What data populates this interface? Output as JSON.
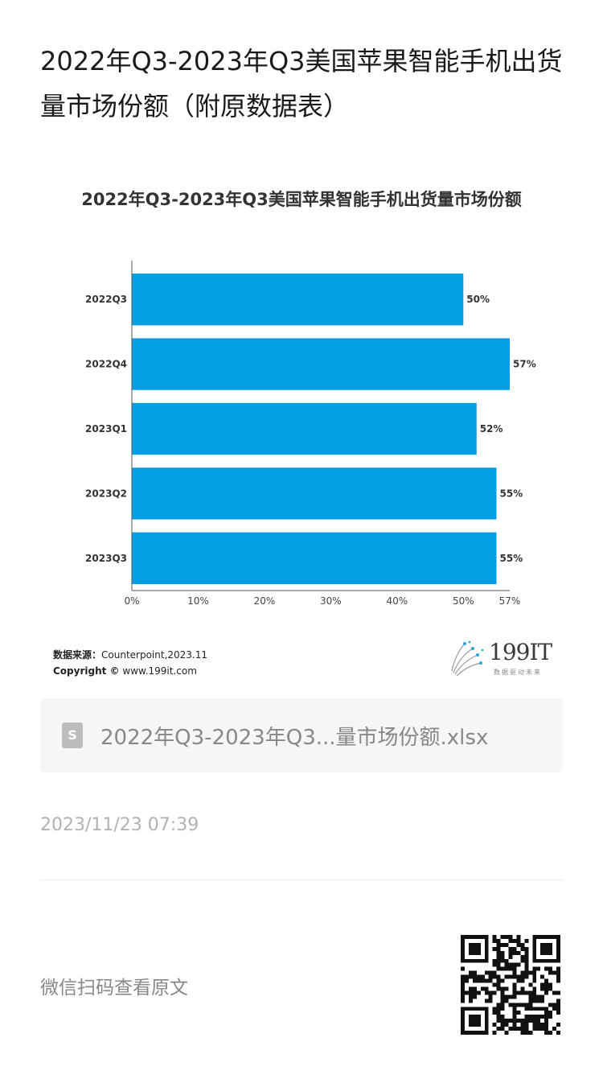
{
  "article": {
    "title": "2022年Q3-2023年Q3美国苹果智能手机出货量市场份额（附原数据表）"
  },
  "chart_data": {
    "type": "bar",
    "orientation": "horizontal",
    "title": "2022年Q3-2023年Q3美国苹果智能手机出货量市场份额",
    "categories": [
      "2022Q3",
      "2022Q4",
      "2023Q1",
      "2023Q2",
      "2023Q3"
    ],
    "values": [
      50,
      57,
      52,
      55,
      55
    ],
    "value_labels": [
      "50%",
      "57%",
      "52%",
      "55%",
      "55%"
    ],
    "x_ticks": [
      "0%",
      "10%",
      "20%",
      "30%",
      "40%",
      "50%",
      "57%"
    ],
    "x_tick_values": [
      0,
      10,
      20,
      30,
      40,
      50,
      57
    ],
    "xlim": [
      0,
      57
    ],
    "bar_color": "#039FE2",
    "grid": false,
    "xlabel": "",
    "ylabel": ""
  },
  "source": {
    "label": "数据来源：",
    "text": "Counterpoint,2023.11",
    "copyright_label": "Copyright ©",
    "copyright_text": "www.199it.com"
  },
  "logo": {
    "text": "199IT",
    "subtitle": "数据驱动未来"
  },
  "attachment": {
    "file_name": "2022年Q3-2023年Q3...量市场份额.xlsx",
    "icon": "spreadsheet-file-icon"
  },
  "meta": {
    "timestamp": "2023/11/23 07:39",
    "wechat_hint": "微信扫码查看原文"
  }
}
